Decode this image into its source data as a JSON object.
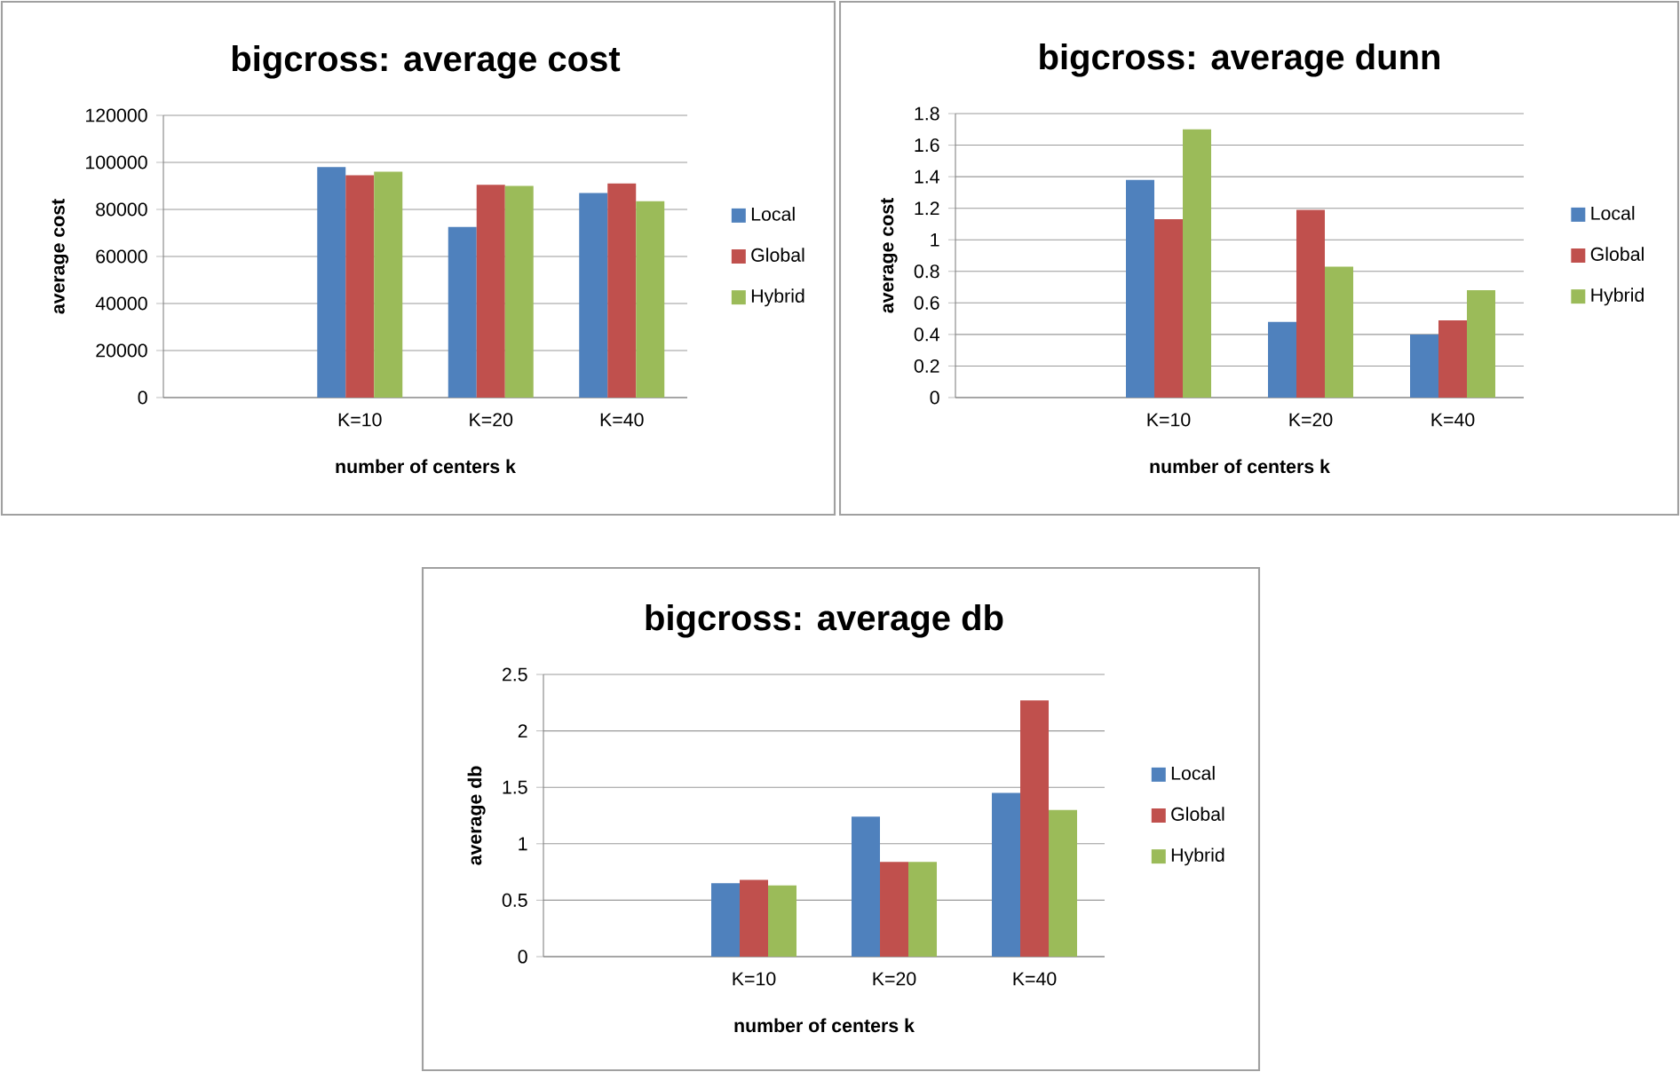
{
  "chart_data": [
    {
      "type": "bar",
      "title": "bigcross: average cost",
      "xlabel": "number of centers k",
      "ylabel": "average cost",
      "categories": [
        null,
        "K=10",
        "K=20",
        "K=40"
      ],
      "series": [
        {
          "name": "Local",
          "color": "#4f81bd",
          "values": [
            null,
            98000,
            72500,
            87000
          ]
        },
        {
          "name": "Global",
          "color": "#c0504d",
          "values": [
            null,
            94500,
            90500,
            91000
          ]
        },
        {
          "name": "Hybrid",
          "color": "#9bbb59",
          "values": [
            null,
            96000,
            90000,
            83500
          ]
        }
      ],
      "ylim": [
        0,
        120000
      ],
      "yticks": [
        0,
        20000,
        40000,
        60000,
        80000,
        100000,
        120000
      ],
      "grid": "y",
      "legend": "right"
    },
    {
      "type": "bar",
      "title": "bigcross: average dunn",
      "xlabel": "number of centers k",
      "ylabel": "average cost",
      "categories": [
        null,
        "K=10",
        "K=20",
        "K=40"
      ],
      "series": [
        {
          "name": "Local",
          "color": "#4f81bd",
          "values": [
            null,
            1.38,
            0.48,
            0.4
          ]
        },
        {
          "name": "Global",
          "color": "#c0504d",
          "values": [
            null,
            1.13,
            1.19,
            0.49
          ]
        },
        {
          "name": "Hybrid",
          "color": "#9bbb59",
          "values": [
            null,
            1.7,
            0.83,
            0.68
          ]
        }
      ],
      "ylim": [
        0,
        1.8
      ],
      "yticks": [
        0,
        0.2,
        0.4,
        0.6,
        0.8,
        1,
        1.2,
        1.4,
        1.6,
        1.8
      ],
      "grid": "y",
      "legend": "right"
    },
    {
      "type": "bar",
      "title": "bigcross: average db",
      "xlabel": "number of centers k",
      "ylabel": "average db",
      "categories": [
        null,
        "K=10",
        "K=20",
        "K=40"
      ],
      "series": [
        {
          "name": "Local",
          "color": "#4f81bd",
          "values": [
            null,
            0.65,
            1.24,
            1.45
          ]
        },
        {
          "name": "Global",
          "color": "#c0504d",
          "values": [
            null,
            0.68,
            0.84,
            2.27
          ]
        },
        {
          "name": "Hybrid",
          "color": "#9bbb59",
          "values": [
            null,
            0.63,
            0.84,
            1.3
          ]
        }
      ],
      "ylim": [
        0,
        2.5
      ],
      "yticks": [
        0,
        0.5,
        1,
        1.5,
        2,
        2.5
      ],
      "grid": "y",
      "legend": "right"
    }
  ]
}
